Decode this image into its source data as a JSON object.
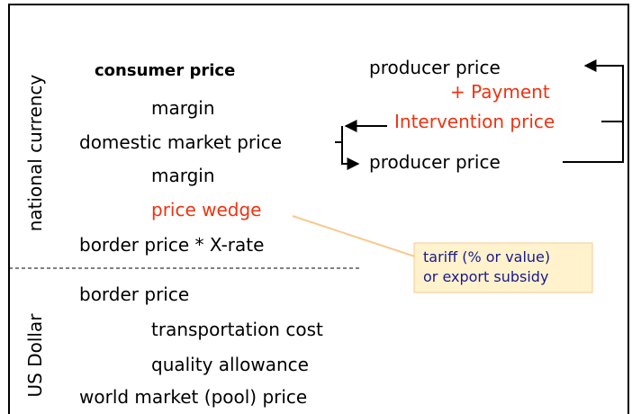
{
  "axis_labels": {
    "national": "national  currency",
    "usd": "US Dollar"
  },
  "left_column": [
    "consumer price",
    "margin",
    "domestic market price",
    "margin",
    "price wedge",
    "border price * X-rate",
    "border price",
    "transportation cost",
    "quality allowance",
    "world market (pool) price"
  ],
  "right_column": [
    "producer price",
    "+ Payment",
    "Intervention price",
    "producer price"
  ],
  "callout": [
    "tariff (% or value)",
    "or export subsidy"
  ]
}
